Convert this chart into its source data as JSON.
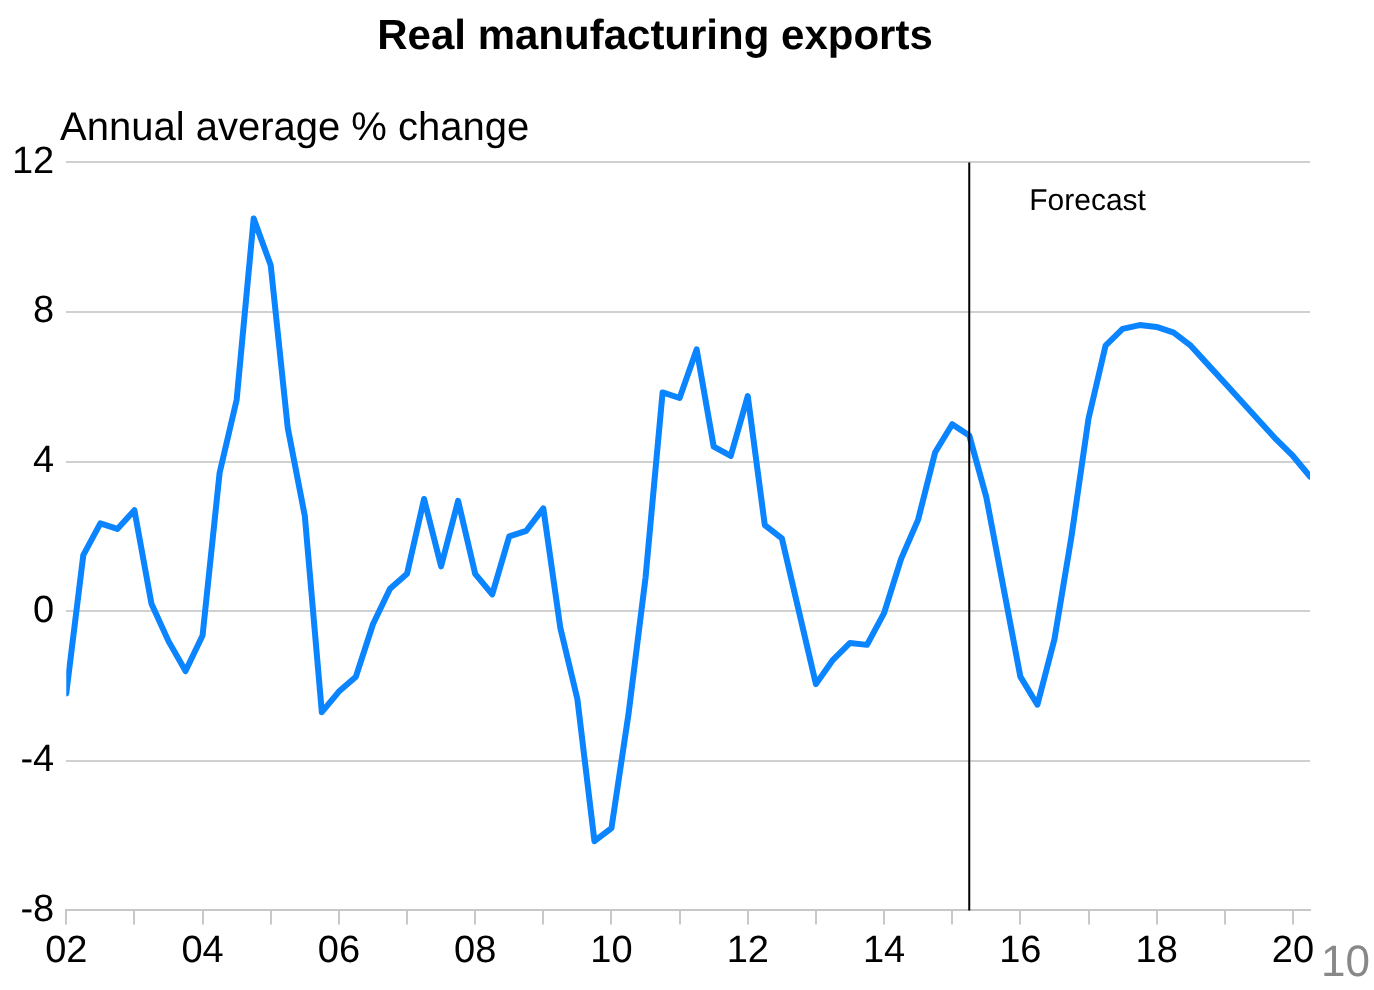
{
  "chart_data": {
    "type": "line",
    "title": "Real manufacturing exports",
    "ylabel": "Annual average % change",
    "x": [
      2002,
      2002.25,
      2002.5,
      2002.75,
      2003,
      2003.25,
      2003.5,
      2003.75,
      2004,
      2004.25,
      2004.5,
      2004.75,
      2005,
      2005.25,
      2005.5,
      2005.75,
      2006,
      2006.25,
      2006.5,
      2006.75,
      2007,
      2007.25,
      2007.5,
      2007.75,
      2008,
      2008.25,
      2008.5,
      2008.75,
      2009,
      2009.25,
      2009.5,
      2009.75,
      2010,
      2010.25,
      2010.5,
      2010.75,
      2011,
      2011.25,
      2011.5,
      2011.75,
      2012,
      2012.25,
      2012.5,
      2012.75,
      2013,
      2013.25,
      2013.5,
      2013.75,
      2014,
      2014.25,
      2014.5,
      2014.75,
      2015,
      2015.25,
      2015.5,
      2015.75,
      2016,
      2016.25,
      2016.5,
      2016.75,
      2017,
      2017.25,
      2017.5,
      2017.75,
      2018,
      2018.25,
      2018.5,
      2018.75,
      2019,
      2019.25,
      2019.5,
      2019.75,
      2020,
      2020.25
    ],
    "series": [
      {
        "color": "#0a84ff",
        "values": [
          -2.2,
          1.5,
          2.35,
          2.2,
          2.7,
          0.2,
          -0.8,
          -1.6,
          -0.65,
          3.7,
          5.65,
          10.5,
          9.25,
          4.9,
          2.55,
          -2.7,
          -2.15,
          -1.75,
          -0.35,
          0.6,
          1.0,
          3.0,
          1.2,
          2.95,
          1.0,
          0.45,
          2.0,
          2.15,
          2.75,
          -0.45,
          -2.35,
          -6.15,
          -5.8,
          -2.75,
          0.9,
          5.85,
          5.7,
          7.0,
          4.4,
          4.15,
          5.75,
          2.3,
          1.95,
          0.0,
          -1.95,
          -1.3,
          -0.85,
          -0.9,
          -0.05,
          1.4,
          2.45,
          4.25,
          5.0,
          4.7,
          3.05,
          0.65,
          -1.75,
          -2.5,
          -0.75,
          2.0,
          5.15,
          7.1,
          7.55,
          7.65,
          7.6,
          7.45,
          7.1,
          6.6,
          6.1,
          5.6,
          5.1,
          4.6,
          4.15,
          3.6
        ]
      }
    ],
    "xlim": [
      2002,
      2020.25
    ],
    "xticks": [
      {
        "value": 2002,
        "label": "02"
      },
      {
        "value": 2003,
        "label": null
      },
      {
        "value": 2004,
        "label": "04"
      },
      {
        "value": 2005,
        "label": null
      },
      {
        "value": 2006,
        "label": "06"
      },
      {
        "value": 2007,
        "label": null
      },
      {
        "value": 2008,
        "label": "08"
      },
      {
        "value": 2009,
        "label": null
      },
      {
        "value": 2010,
        "label": "10"
      },
      {
        "value": 2011,
        "label": null
      },
      {
        "value": 2012,
        "label": "12"
      },
      {
        "value": 2013,
        "label": null
      },
      {
        "value": 2014,
        "label": "14"
      },
      {
        "value": 2015,
        "label": null
      },
      {
        "value": 2016,
        "label": "16"
      },
      {
        "value": 2017,
        "label": null
      },
      {
        "value": 2018,
        "label": "18"
      },
      {
        "value": 2019,
        "label": null
      },
      {
        "value": 2020,
        "label": "20"
      }
    ],
    "ylim": [
      -8,
      12
    ],
    "yticks": [
      -8,
      -4,
      0,
      4,
      8,
      12
    ],
    "grid": "y",
    "marker": "none",
    "line_style": "solid",
    "legend": false,
    "ref_lines": [
      {
        "axis": "x",
        "value": 2015.25,
        "label": "Forecast",
        "color": "#000000"
      }
    ],
    "annotations": [
      "10"
    ]
  }
}
